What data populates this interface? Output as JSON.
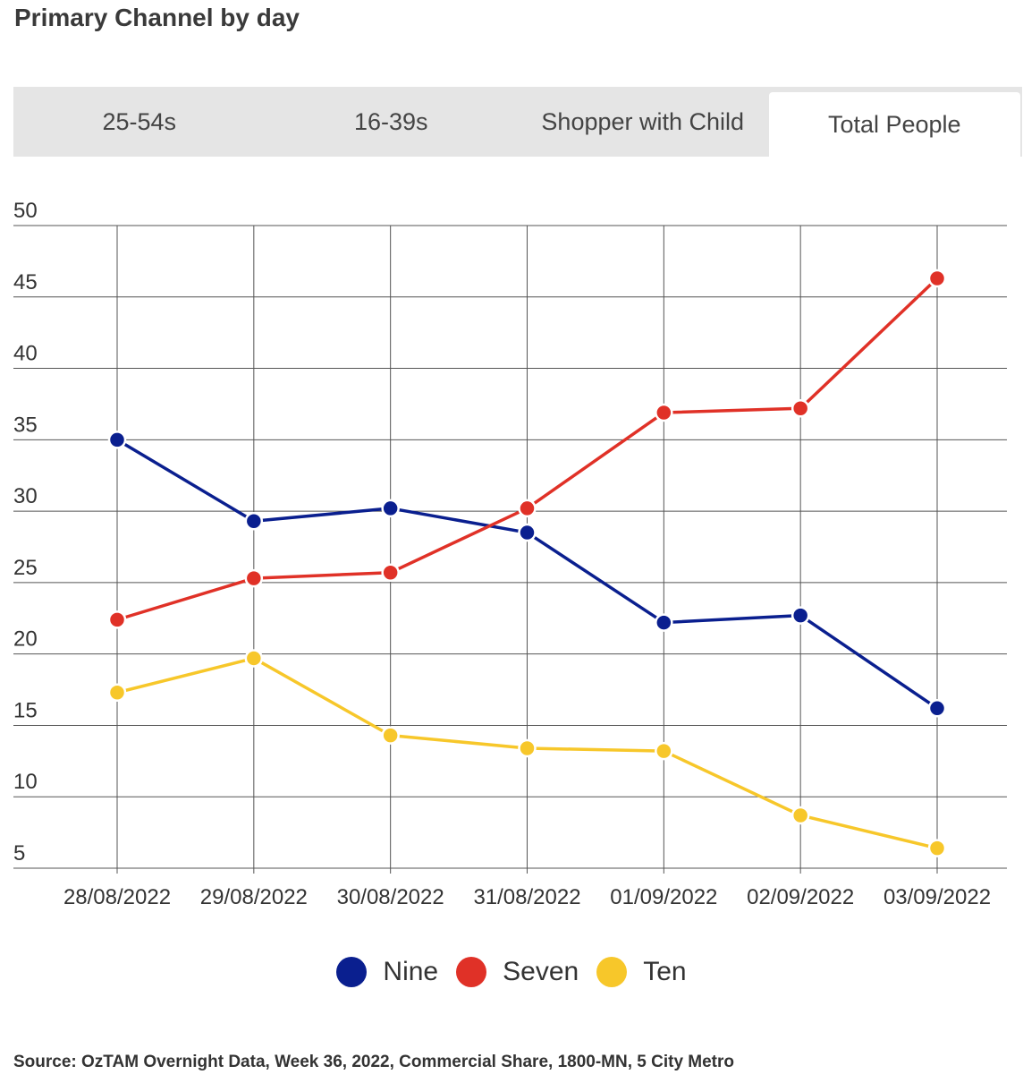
{
  "header": {
    "title": "Primary Channel by day"
  },
  "tabs": [
    {
      "label": "25-54s",
      "active": false
    },
    {
      "label": "16-39s",
      "active": false
    },
    {
      "label": "Shopper with Child",
      "active": false
    },
    {
      "label": "Total People",
      "active": true
    }
  ],
  "chart_data": {
    "type": "line",
    "title": "",
    "xlabel": "",
    "ylabel": "",
    "ylim": [
      5,
      50
    ],
    "yticks": [
      5,
      10,
      15,
      20,
      25,
      30,
      35,
      40,
      45,
      50
    ],
    "grid": true,
    "legend_position": "bottom-center",
    "categories": [
      "28/08/2022",
      "29/08/2022",
      "30/08/2022",
      "31/08/2022",
      "01/09/2022",
      "02/09/2022",
      "03/09/2022"
    ],
    "series": [
      {
        "name": "Nine",
        "color": "#0a1f8f",
        "values": [
          35.0,
          29.3,
          30.2,
          28.5,
          22.2,
          22.7,
          16.2
        ]
      },
      {
        "name": "Seven",
        "color": "#e03127",
        "values": [
          22.4,
          25.3,
          25.7,
          30.2,
          36.9,
          37.2,
          46.3
        ]
      },
      {
        "name": "Ten",
        "color": "#f7c72a",
        "values": [
          17.3,
          19.7,
          14.3,
          13.4,
          13.2,
          8.7,
          6.4
        ]
      }
    ]
  },
  "footer": {
    "source": "Source: OzTAM Overnight Data, Week 36, 2022, Commercial Share, 1800-MN, 5 City Metro"
  }
}
